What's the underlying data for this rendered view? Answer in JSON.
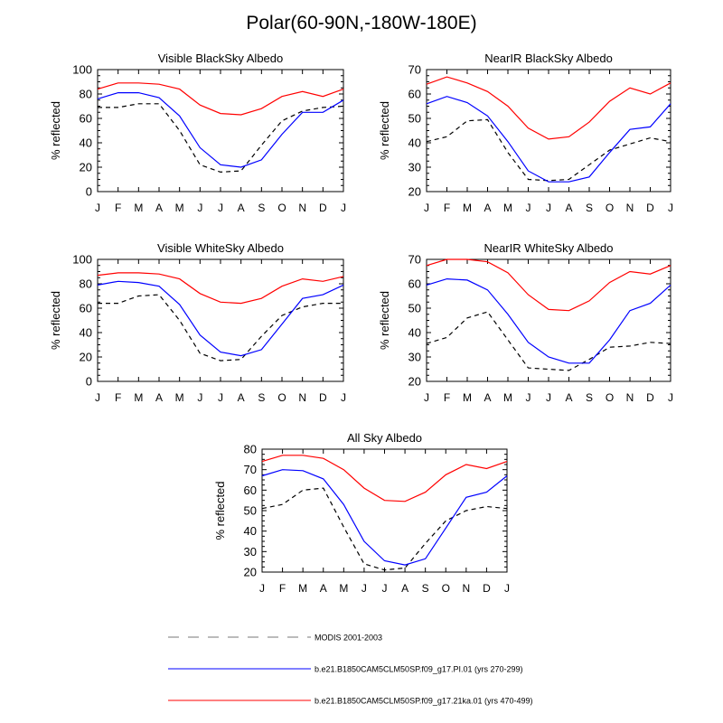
{
  "title": "Polar(60-90N,-180W-180E)",
  "legend": [
    {
      "label": "MODIS 2001-2003",
      "color": "#000000",
      "dash": true
    },
    {
      "label": "b.e21.B1850CAM5CLM50SP.f09_g17.PI.01 (yrs 270-299)",
      "color": "#0000ff",
      "dash": false
    },
    {
      "label": "b.e21.B1850CAM5CLM50SP.f09_g17.21ka.01 (yrs 470-499)",
      "color": "#ff0000",
      "dash": false
    }
  ],
  "chart_data": [
    {
      "type": "line",
      "title": "Visible BlackSky Albedo",
      "xlabel": "",
      "ylabel": "% reflected",
      "categories": [
        "J",
        "F",
        "M",
        "A",
        "M",
        "J",
        "J",
        "A",
        "S",
        "O",
        "N",
        "D",
        "J"
      ],
      "ylim": [
        0,
        100
      ],
      "yticks": [
        0,
        20,
        40,
        60,
        80,
        100
      ],
      "series": [
        {
          "name": "MODIS 2001-2003",
          "color": "#000000",
          "dash": true,
          "values": [
            69,
            69,
            72,
            72,
            50,
            22,
            16,
            17,
            38,
            58,
            66,
            69,
            70
          ]
        },
        {
          "name": "b.e21.B1850CAM5CLM50SP.f09_g17.PI.01 (yrs 270-299)",
          "color": "#0000ff",
          "dash": false,
          "values": [
            76,
            81,
            81,
            77,
            62,
            36,
            22,
            20,
            26,
            47,
            65,
            65,
            75
          ]
        },
        {
          "name": "b.e21.B1850CAM5CLM50SP.f09_g17.21ka.01 (yrs 470-499)",
          "color": "#ff0000",
          "dash": false,
          "values": [
            84,
            89,
            89,
            88,
            84,
            71,
            64,
            63,
            68,
            78,
            82,
            78,
            84
          ]
        }
      ]
    },
    {
      "type": "line",
      "title": "NearIR BlackSky Albedo",
      "xlabel": "",
      "ylabel": "% reflected",
      "categories": [
        "J",
        "F",
        "M",
        "A",
        "M",
        "J",
        "J",
        "A",
        "S",
        "O",
        "N",
        "D",
        "J"
      ],
      "ylim": [
        20,
        70
      ],
      "yticks": [
        20,
        30,
        40,
        50,
        60,
        70
      ],
      "series": [
        {
          "name": "MODIS 2001-2003",
          "color": "#000000",
          "dash": true,
          "values": [
            40.5,
            42.5,
            49,
            49.5,
            36,
            25,
            24.5,
            25,
            31,
            37,
            39.5,
            42,
            40.5
          ]
        },
        {
          "name": "b.e21.B1850CAM5CLM50SP.f09_g17.PI.01 (yrs 270-299)",
          "color": "#0000ff",
          "dash": false,
          "values": [
            56,
            59,
            56.5,
            51,
            40.5,
            28.5,
            24,
            24,
            26,
            36,
            45.5,
            46.5,
            56
          ]
        },
        {
          "name": "b.e21.B1850CAM5CLM50SP.f09_g17.21ka.01 (yrs 470-499)",
          "color": "#ff0000",
          "dash": false,
          "values": [
            64,
            67,
            64.5,
            61,
            55,
            46,
            41.5,
            42.5,
            48.5,
            57,
            62.5,
            60,
            64.5
          ]
        }
      ]
    },
    {
      "type": "line",
      "title": "Visible WhiteSky Albedo",
      "xlabel": "",
      "ylabel": "% reflected",
      "categories": [
        "J",
        "F",
        "M",
        "A",
        "M",
        "J",
        "J",
        "A",
        "S",
        "O",
        "N",
        "D",
        "J"
      ],
      "ylim": [
        0,
        100
      ],
      "yticks": [
        0,
        20,
        40,
        60,
        80,
        100
      ],
      "series": [
        {
          "name": "MODIS 2001-2003",
          "color": "#000000",
          "dash": true,
          "values": [
            64,
            64,
            70,
            71,
            50,
            23,
            17,
            18,
            37,
            54,
            61,
            64,
            64
          ]
        },
        {
          "name": "b.e21.B1850CAM5CLM50SP.f09_g17.PI.01 (yrs 270-299)",
          "color": "#0000ff",
          "dash": false,
          "values": [
            79,
            82,
            81,
            78,
            63,
            38,
            24,
            21,
            26,
            47,
            68,
            71,
            79
          ]
        },
        {
          "name": "b.e21.B1850CAM5CLM50SP.f09_g17.21ka.01 (yrs 470-499)",
          "color": "#ff0000",
          "dash": false,
          "values": [
            87,
            89,
            89,
            88,
            84,
            72,
            65,
            64,
            68,
            78,
            84,
            82,
            86
          ]
        }
      ]
    },
    {
      "type": "line",
      "title": "NearIR WhiteSky Albedo",
      "xlabel": "",
      "ylabel": "% reflected",
      "categories": [
        "J",
        "F",
        "M",
        "A",
        "M",
        "J",
        "J",
        "A",
        "S",
        "O",
        "N",
        "D",
        "J"
      ],
      "ylim": [
        20,
        70
      ],
      "yticks": [
        20,
        30,
        40,
        50,
        60,
        70
      ],
      "series": [
        {
          "name": "MODIS 2001-2003",
          "color": "#000000",
          "dash": true,
          "values": [
            35.5,
            38,
            46,
            48.5,
            37,
            25.5,
            25,
            24.5,
            29,
            34,
            34.5,
            36,
            35.5
          ]
        },
        {
          "name": "b.e21.B1850CAM5CLM50SP.f09_g17.PI.01 (yrs 270-299)",
          "color": "#0000ff",
          "dash": false,
          "values": [
            59.5,
            62,
            61.5,
            57.5,
            47.5,
            36,
            30,
            27.5,
            27.5,
            37,
            49,
            52,
            59.5
          ]
        },
        {
          "name": "b.e21.B1850CAM5CLM50SP.f09_g17.21ka.01 (yrs 470-499)",
          "color": "#ff0000",
          "dash": false,
          "values": [
            67.5,
            70,
            70,
            69,
            64.5,
            55.5,
            49.5,
            49,
            53,
            60.5,
            65,
            64,
            67.5
          ]
        }
      ]
    },
    {
      "type": "line",
      "title": "All Sky Albedo",
      "xlabel": "",
      "ylabel": "% reflected",
      "categories": [
        "J",
        "F",
        "M",
        "A",
        "M",
        "J",
        "J",
        "A",
        "S",
        "O",
        "N",
        "D",
        "J"
      ],
      "ylim": [
        20,
        80
      ],
      "yticks": [
        20,
        30,
        40,
        50,
        60,
        70,
        80
      ],
      "series": [
        {
          "name": "MODIS 2001-2003",
          "color": "#000000",
          "dash": true,
          "values": [
            51,
            53,
            60,
            61,
            42,
            24,
            21,
            22,
            34,
            45,
            50,
            52,
            51
          ]
        },
        {
          "name": "b.e21.B1850CAM5CLM50SP.f09_g17.PI.01 (yrs 270-299)",
          "color": "#0000ff",
          "dash": false,
          "values": [
            67,
            70,
            69.5,
            65.5,
            53,
            35,
            25.5,
            23.5,
            26.5,
            41.5,
            56.5,
            59,
            67
          ]
        },
        {
          "name": "b.e21.B1850CAM5CLM50SP.f09_g17.21ka.01 (yrs 470-499)",
          "color": "#ff0000",
          "dash": false,
          "values": [
            74,
            77,
            77,
            75.5,
            70,
            61,
            55,
            54.5,
            59,
            67.5,
            72.5,
            70.5,
            74
          ]
        }
      ]
    }
  ]
}
